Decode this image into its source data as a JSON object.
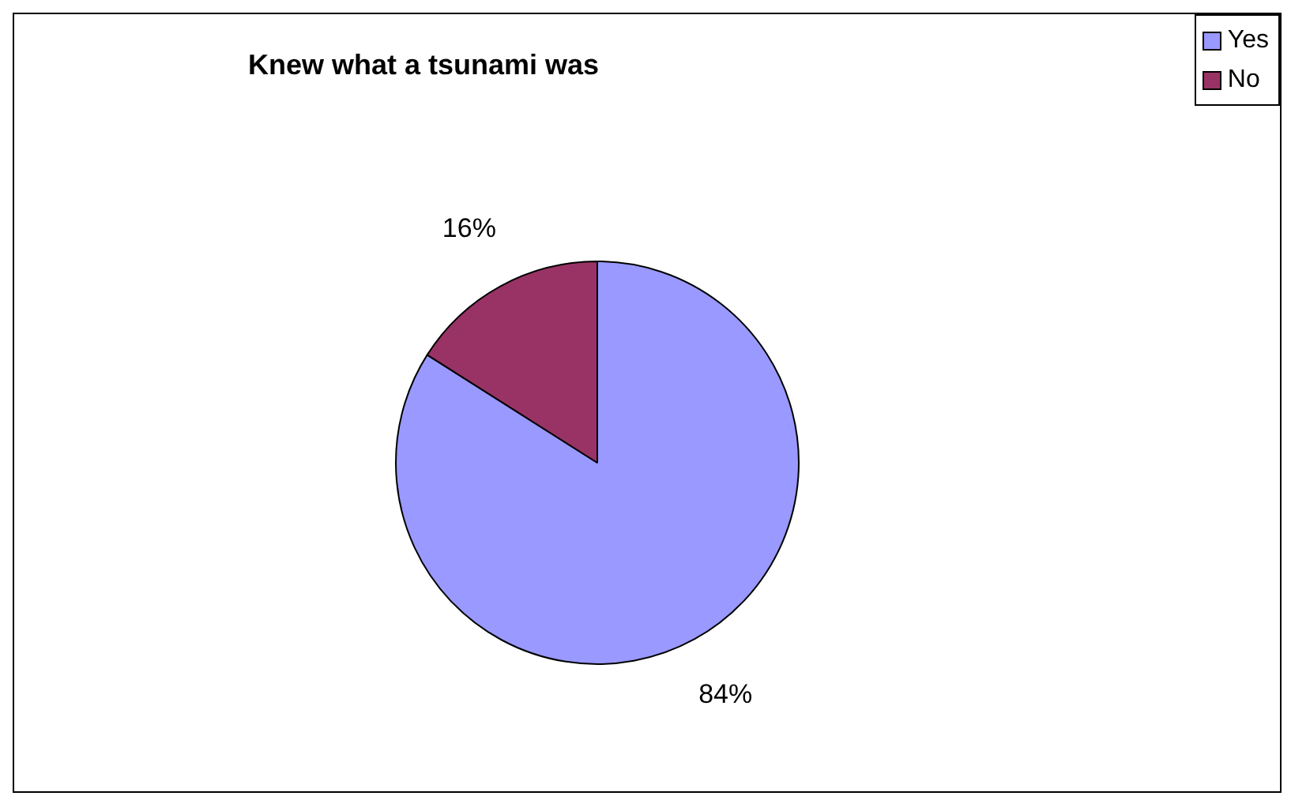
{
  "chart_data": {
    "type": "pie",
    "title": "Knew what a tsunami was",
    "categories": [
      "Yes",
      "No"
    ],
    "values": [
      84,
      16
    ],
    "colors": [
      "#9999ff",
      "#993366"
    ],
    "legend": "top right",
    "value_labels": [
      "84%",
      "16%"
    ]
  }
}
